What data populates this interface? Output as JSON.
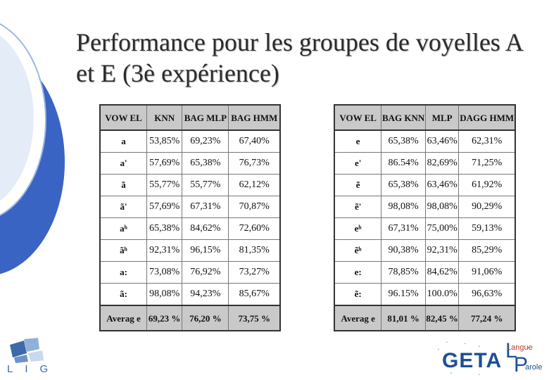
{
  "slide": {
    "title": "Performance pour les groupes de voyelles A et E (3è expérience)"
  },
  "table_a": {
    "headers": [
      "VOW EL",
      "KNN",
      "BAG MLP",
      "BAG HMM"
    ],
    "rows": [
      [
        "a",
        "53,85%",
        "69,23%",
        "67,40%"
      ],
      [
        "a'",
        "57,69%",
        "65,38%",
        "76,73%"
      ],
      [
        "ã",
        "55,77%",
        "55,77%",
        "62,12%"
      ],
      [
        "ã'",
        "57,69%",
        "67,31%",
        "70,87%"
      ],
      [
        "aʰ",
        "65,38%",
        "84,62%",
        "72,60%"
      ],
      [
        "ãʰ",
        "92,31%",
        "96,15%",
        "81,35%"
      ],
      [
        "a:",
        "73,08%",
        "76,92%",
        "73,27%"
      ],
      [
        "ã:",
        "98,08%",
        "94,23%",
        "85,67%"
      ]
    ],
    "footer": [
      "Averag e",
      "69,23 %",
      "76,20 %",
      "73,75 %"
    ]
  },
  "table_e": {
    "headers": [
      "VOW EL",
      "BAG KNN",
      "MLP",
      "DAGG HMM"
    ],
    "rows": [
      [
        "e",
        "65,38%",
        "63,46%",
        "62,31%"
      ],
      [
        "e'",
        "86.54%",
        "82,69%",
        "71,25%"
      ],
      [
        "ẽ",
        "65,38%",
        "63,46%",
        "61,92%"
      ],
      [
        "ẽ'",
        "98,08%",
        "98,08%",
        "90,29%"
      ],
      [
        "eʰ",
        "67,31%",
        "75,00%",
        "59,13%"
      ],
      [
        "ẽʰ",
        "90,38%",
        "92,31%",
        "85,29%"
      ],
      [
        "e:",
        "78,85%",
        "84,62%",
        "91,06%"
      ],
      [
        "ẽ:",
        "96.15%",
        "100.0%",
        "96,63%"
      ]
    ],
    "footer": [
      "Averag e",
      "81,01 %",
      "82,45 %",
      "77,24 %"
    ]
  },
  "logos": {
    "left_logo_text": "LIG",
    "right_logo_main": "GETA",
    "right_logo_l": "L",
    "right_logo_p": "P",
    "right_logo_langue": "Langue",
    "right_logo_parole": "arole"
  },
  "colors": {
    "deco_light": "#d9e6f7",
    "deco_dark": "#3a64c4",
    "header_bg": "#c9c9c9",
    "logo_blue": "#1f4e96"
  }
}
